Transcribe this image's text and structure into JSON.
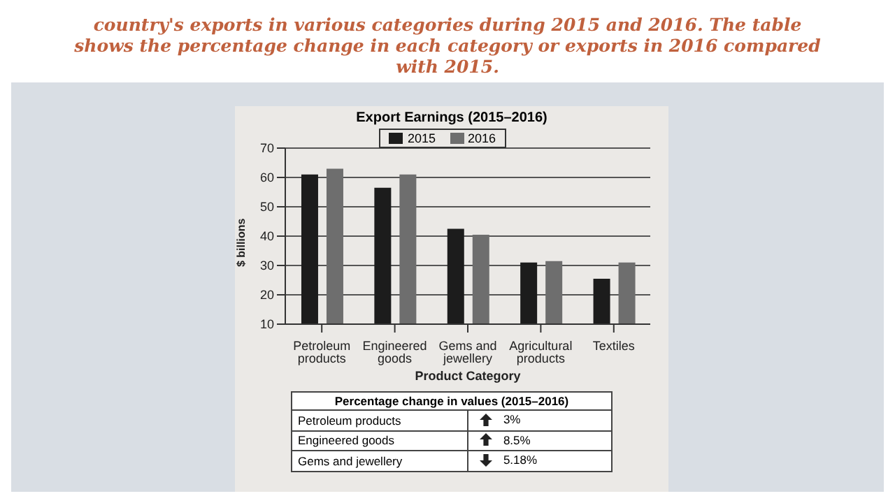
{
  "chart_data": {
    "type": "bar",
    "title": "Export Earnings (2015–2016)",
    "xlabel": "Product Category",
    "ylabel": "$ billions",
    "categories": [
      "Petroleum products",
      "Engineered goods",
      "Gems and jewellery",
      "Agricultural products",
      "Textiles"
    ],
    "series": [
      {
        "name": "2015",
        "color": "#1c1c1c",
        "values": [
          61,
          56.5,
          42.5,
          31,
          25.5
        ]
      },
      {
        "name": "2016",
        "color": "#6e6e6e",
        "values": [
          63,
          61,
          40.5,
          31.5,
          31
        ]
      }
    ],
    "ylim": [
      10,
      70
    ],
    "yticks": [
      10,
      20,
      30,
      40,
      50,
      60,
      70
    ],
    "grid": "y",
    "legend": "top",
    "annotations": [
      "country's exports in various categories during 2015 and 2016. The table shows the percentage change in each category or exports in 2016 compared with 2015.",
      "Percentage change in values (2015–2016)",
      "Petroleum products",
      "3%",
      "Engineered goods",
      "8.5%",
      "Gems and jewellery",
      "5.18%"
    ]
  }
}
